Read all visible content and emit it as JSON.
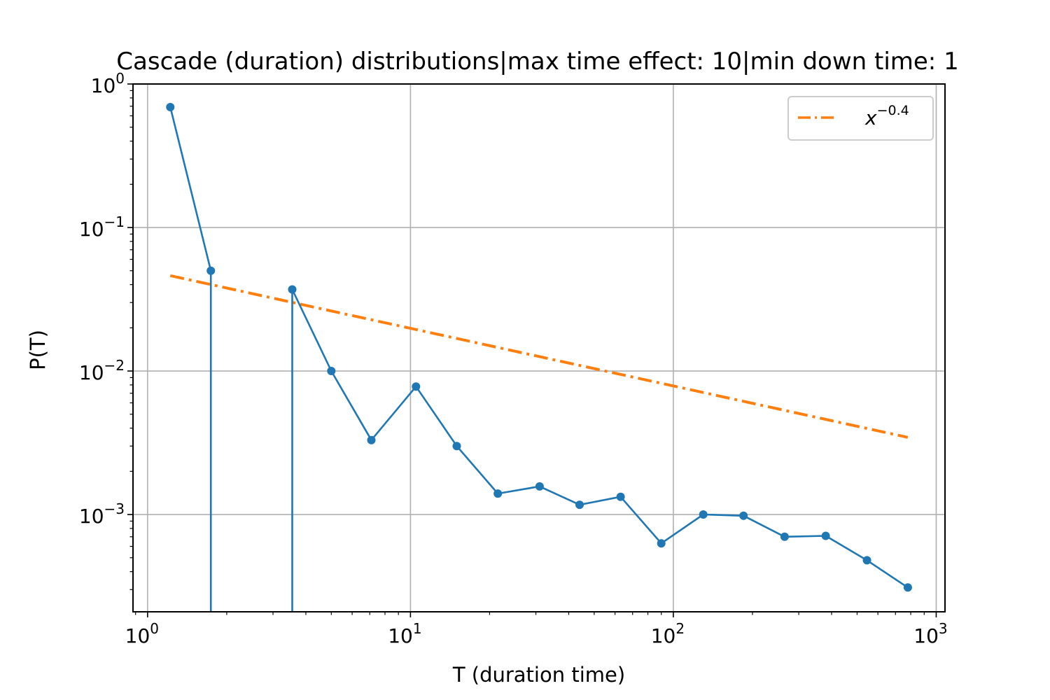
{
  "chart_data": {
    "type": "line",
    "title": "Cascade (duration) distributions|max time effect: 10|min down time: 1",
    "xlabel": "T (duration time)",
    "ylabel": "P(T)",
    "xscale": "log",
    "yscale": "log",
    "xlim": [
      0.88,
      1080
    ],
    "ylim": [
      0.00021,
      1.0
    ],
    "grid": true,
    "legend_position": "top-right",
    "colors": {
      "data": "#1f77b4",
      "fit": "#ff7f0e"
    },
    "x_ticks": [
      {
        "base": "10",
        "exp": "0",
        "value": 1
      },
      {
        "base": "10",
        "exp": "1",
        "value": 10
      },
      {
        "base": "10",
        "exp": "2",
        "value": 100
      },
      {
        "base": "10",
        "exp": "3",
        "value": 1000
      }
    ],
    "y_ticks": [
      {
        "base": "10",
        "exp": "0",
        "value": 1
      },
      {
        "base": "10",
        "exp": "−1",
        "value": 0.1
      },
      {
        "base": "10",
        "exp": "−2",
        "value": 0.01
      },
      {
        "base": "10",
        "exp": "−3",
        "value": 0.001
      }
    ],
    "series": [
      {
        "style": "line-marker",
        "points": [
          [
            1.22,
            0.69
          ],
          [
            1.74,
            0.05
          ],
          [
            1.74,
            0
          ],
          [
            3.55,
            0
          ],
          [
            3.55,
            0.037
          ],
          [
            5.0,
            0.01
          ],
          [
            7.1,
            0.0033
          ],
          [
            10.5,
            0.0078
          ],
          [
            15.0,
            0.003
          ],
          [
            21.5,
            0.0014
          ],
          [
            31.0,
            0.00157
          ],
          [
            44.0,
            0.00117
          ],
          [
            63.0,
            0.00133
          ],
          [
            90.0,
            0.00063
          ],
          [
            130.0,
            0.001
          ],
          [
            185.0,
            0.00098
          ],
          [
            265.0,
            0.0007
          ],
          [
            380.0,
            0.00071
          ],
          [
            545.0,
            0.00048
          ],
          [
            780.0,
            0.00031
          ]
        ]
      },
      {
        "name_base": "x",
        "name_exp": "−0.4",
        "style": "dash-dot",
        "exponent": -0.4,
        "x": [
          1.22,
          780.0
        ],
        "y": [
          0.0462,
          0.00345
        ]
      }
    ]
  }
}
